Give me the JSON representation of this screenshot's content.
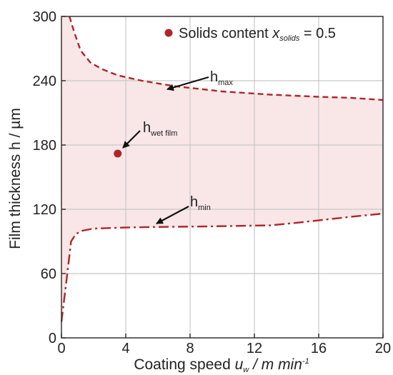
{
  "chart_data": {
    "type": "line",
    "title": "",
    "xlabel": {
      "text": "Coating speed ",
      "var": "u",
      "var_sub": "w",
      "unit": " / m min",
      "unit_sup": "-1"
    },
    "ylabel": "Film thickness h / µm",
    "xlim": [
      0,
      20
    ],
    "ylim": [
      0,
      300
    ],
    "xticks": [
      0,
      4,
      8,
      12,
      16,
      20
    ],
    "yticks": [
      0,
      60,
      120,
      180,
      240,
      300
    ],
    "x_tick_labels": [
      "0",
      "4",
      "8",
      "12",
      "16",
      "20"
    ],
    "y_tick_labels": [
      "0",
      "60",
      "120",
      "180",
      "240",
      "300"
    ],
    "grid": true,
    "legend_position": "top-right",
    "colors": {
      "series": "#b0252a",
      "fill": "#f9e6e6",
      "grid": "#c8c8c8",
      "axis": "#333333"
    },
    "series": [
      {
        "name": "h_max",
        "style": "dashed",
        "points": [
          [
            0.5,
            300
          ],
          [
            0.8,
            285
          ],
          [
            1.2,
            268
          ],
          [
            1.8,
            257
          ],
          [
            2.5,
            251
          ],
          [
            3.5,
            245
          ],
          [
            5,
            240
          ],
          [
            7,
            235
          ],
          [
            10,
            230
          ],
          [
            13,
            227
          ],
          [
            16,
            225
          ],
          [
            18,
            224
          ],
          [
            20,
            222
          ]
        ]
      },
      {
        "name": "h_min",
        "style": "dash-dot",
        "points": [
          [
            0,
            15
          ],
          [
            0.3,
            52
          ],
          [
            0.6,
            90
          ],
          [
            0.9,
            97
          ],
          [
            1.3,
            100
          ],
          [
            2,
            102
          ],
          [
            4,
            103
          ],
          [
            6,
            103.5
          ],
          [
            9,
            104
          ],
          [
            13,
            105
          ],
          [
            15,
            108
          ],
          [
            18,
            113
          ],
          [
            20,
            116
          ]
        ]
      }
    ],
    "feasible_region": "between h_min and h_max",
    "point": {
      "x": 3.5,
      "y": 172
    },
    "legend": {
      "label": "Solids content ",
      "var": "x",
      "var_sub": "solids",
      "value": " = 0.5"
    },
    "annotations": {
      "hmax": {
        "main": "h",
        "sub": "max"
      },
      "hmin": {
        "main": "h",
        "sub": "min"
      },
      "hwet": {
        "main": "h",
        "sub": "wet film"
      }
    }
  }
}
